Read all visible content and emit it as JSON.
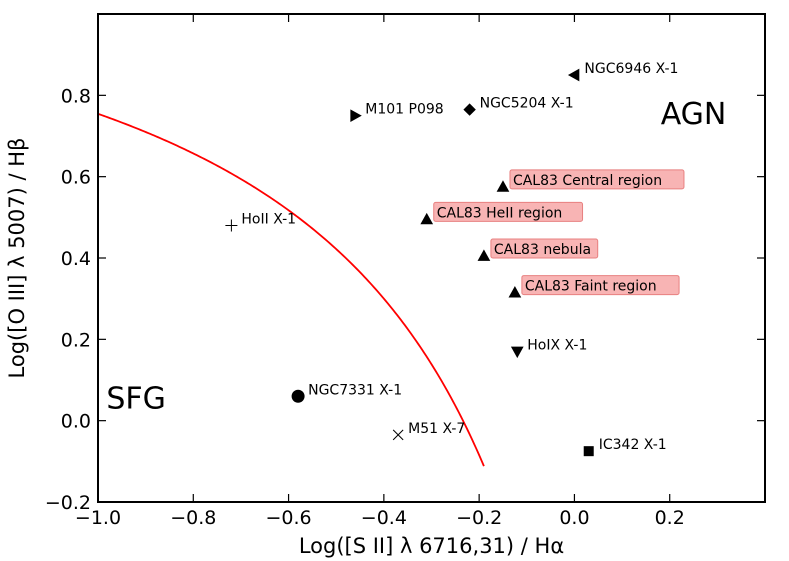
{
  "chart_data": {
    "type": "scatter",
    "xlabel": "Log([S II] λ 6716,31) / Hα",
    "ylabel": "Log([O III] λ 5007) / Hβ",
    "xlim": [
      -1.0,
      0.4
    ],
    "ylim": [
      -0.2,
      1.0
    ],
    "x_ticks": [
      -1.0,
      -0.8,
      -0.6,
      -0.4,
      -0.2,
      0.0,
      0.2
    ],
    "x_tick_labels": [
      "−1.0",
      "−0.8",
      "−0.6",
      "−0.4",
      "−0.2",
      "0.0",
      "0.2"
    ],
    "y_ticks": [
      -0.2,
      0.0,
      0.2,
      0.4,
      0.6,
      0.8
    ],
    "y_tick_labels": [
      "−0.2",
      "0.0",
      "0.2",
      "0.4",
      "0.6",
      "0.8"
    ],
    "grid": false,
    "regions": [
      {
        "label": "AGN",
        "x": 0.25,
        "y": 0.73
      },
      {
        "label": "SFG",
        "x": -0.92,
        "y": 0.03
      }
    ],
    "demarcation_curve": {
      "color": "#ff0000",
      "formula": "y = 0.72 / (x - 0.32) + 1.30",
      "x_range": [
        -1.0,
        -0.19
      ]
    },
    "points": [
      {
        "name": "NGC6946 X-1",
        "x": 0.0,
        "y": 0.85,
        "marker": "triangle-left",
        "highlight": false
      },
      {
        "name": "M101 P098",
        "x": -0.46,
        "y": 0.75,
        "marker": "triangle-right",
        "highlight": false
      },
      {
        "name": "NGC5204 X-1",
        "x": -0.22,
        "y": 0.765,
        "marker": "diamond",
        "highlight": false
      },
      {
        "name": "CAL83 Central region",
        "x": -0.15,
        "y": 0.575,
        "marker": "triangle-up",
        "highlight": true
      },
      {
        "name": "CAL83 HeII region",
        "x": -0.31,
        "y": 0.495,
        "marker": "triangle-up",
        "highlight": true
      },
      {
        "name": "HoII X-1",
        "x": -0.72,
        "y": 0.48,
        "marker": "plus",
        "highlight": false
      },
      {
        "name": "CAL83 nebula",
        "x": -0.19,
        "y": 0.405,
        "marker": "triangle-up",
        "highlight": true
      },
      {
        "name": "CAL83 Faint region",
        "x": -0.125,
        "y": 0.315,
        "marker": "triangle-up",
        "highlight": true
      },
      {
        "name": "HoIX X-1",
        "x": -0.12,
        "y": 0.17,
        "marker": "triangle-down",
        "highlight": false
      },
      {
        "name": "NGC7331 X-1",
        "x": -0.58,
        "y": 0.06,
        "marker": "circle",
        "highlight": false
      },
      {
        "name": "M51 X-7",
        "x": -0.37,
        "y": -0.035,
        "marker": "x",
        "highlight": false
      },
      {
        "name": "IC342 X-1",
        "x": 0.03,
        "y": -0.075,
        "marker": "square",
        "highlight": false
      }
    ],
    "colors": {
      "curve": "#ff0000",
      "highlight_fill": "#f8b4b4",
      "highlight_stroke": "#e88080",
      "marker": "#000000"
    }
  }
}
